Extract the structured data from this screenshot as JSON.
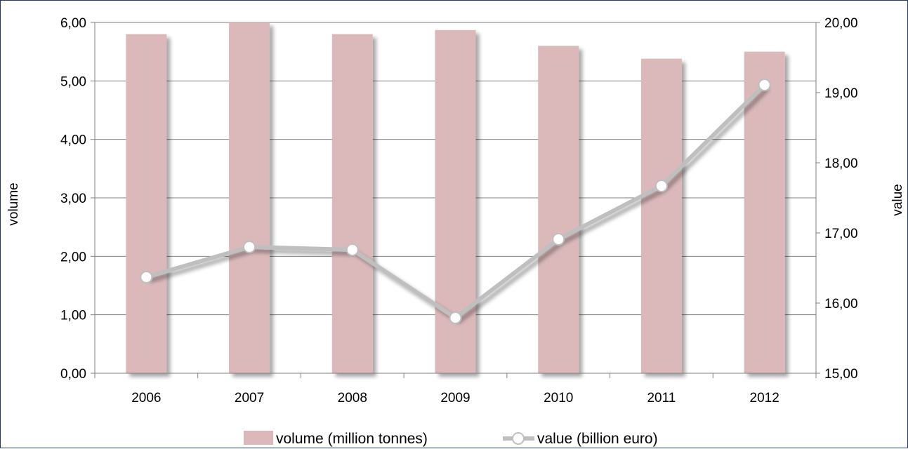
{
  "chart_data": {
    "type": "bar",
    "categories": [
      "2006",
      "2007",
      "2008",
      "2009",
      "2010",
      "2011",
      "2012"
    ],
    "series": [
      {
        "name": "volume (million tonnes)",
        "type": "bar",
        "axis": "left",
        "color": "#dbb9bb",
        "values": [
          5.8,
          6.0,
          5.8,
          5.87,
          5.6,
          5.38,
          5.5
        ]
      },
      {
        "name": "value (billion euro)",
        "type": "line",
        "axis": "right",
        "color": "#bfbfbf",
        "marker": "open-circle",
        "values": [
          16.37,
          16.8,
          16.76,
          15.79,
          16.91,
          17.67,
          19.11
        ]
      }
    ],
    "y_left": {
      "label": "volume",
      "lim": [
        0,
        6
      ],
      "ticks": [
        "0,00",
        "1,00",
        "2,00",
        "3,00",
        "4,00",
        "5,00",
        "6,00"
      ]
    },
    "y_right": {
      "label": "value",
      "lim": [
        15,
        20
      ],
      "ticks": [
        "15,00",
        "16,00",
        "17,00",
        "18,00",
        "19,00",
        "20,00"
      ]
    },
    "grid": true,
    "legend_position": "bottom"
  }
}
